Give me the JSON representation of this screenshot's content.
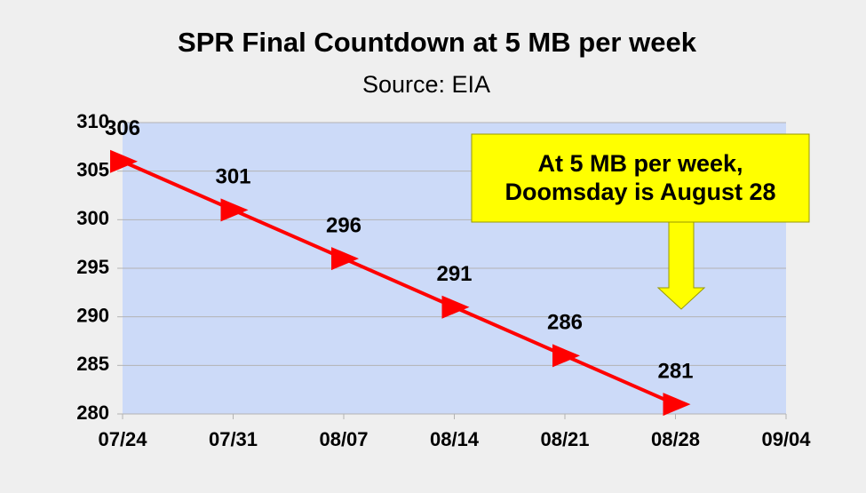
{
  "chart_data": {
    "type": "line",
    "title": "SPR Final Countdown at 5 MB per week",
    "subtitle": "Source: EIA",
    "categories": [
      "07/24",
      "07/31",
      "08/07",
      "08/14",
      "08/21",
      "08/28",
      "09/04"
    ],
    "series": [
      {
        "color": "#ff0000",
        "values": [
          306,
          301,
          296,
          291,
          286,
          281,
          null
        ]
      }
    ],
    "ylim": [
      280,
      310
    ],
    "yticks": [
      280,
      285,
      290,
      295,
      300,
      305,
      310
    ],
    "grid": true,
    "annotation": [
      "At 5 MB per week,",
      "Doomsday is August 28"
    ]
  }
}
